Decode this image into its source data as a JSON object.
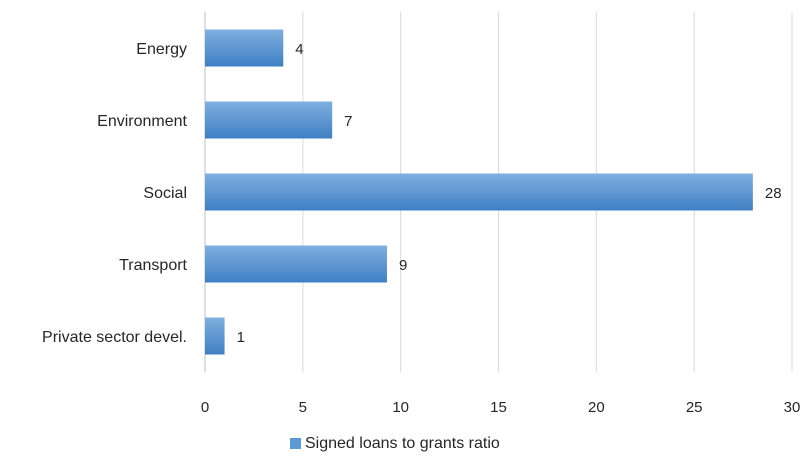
{
  "chart_data": {
    "type": "bar",
    "orientation": "horizontal",
    "categories": [
      "Energy",
      "Environment",
      "Social",
      "Transport",
      "Private sector devel."
    ],
    "series": [
      {
        "name": "Signed loans to grants ratio",
        "values": [
          4,
          6.5,
          28,
          9.3,
          1
        ],
        "data_labels": [
          "4",
          "7",
          "28",
          "9",
          "1"
        ]
      }
    ],
    "xlim": [
      0,
      30
    ],
    "xticks": [
      0,
      5,
      10,
      15,
      20,
      25,
      30
    ],
    "grid": "vertical",
    "legend_position": "bottom",
    "colors": {
      "bar": "#5b9bd5",
      "bar_light": "#7fb0e0",
      "bar_dark": "#3f7fc3"
    }
  }
}
